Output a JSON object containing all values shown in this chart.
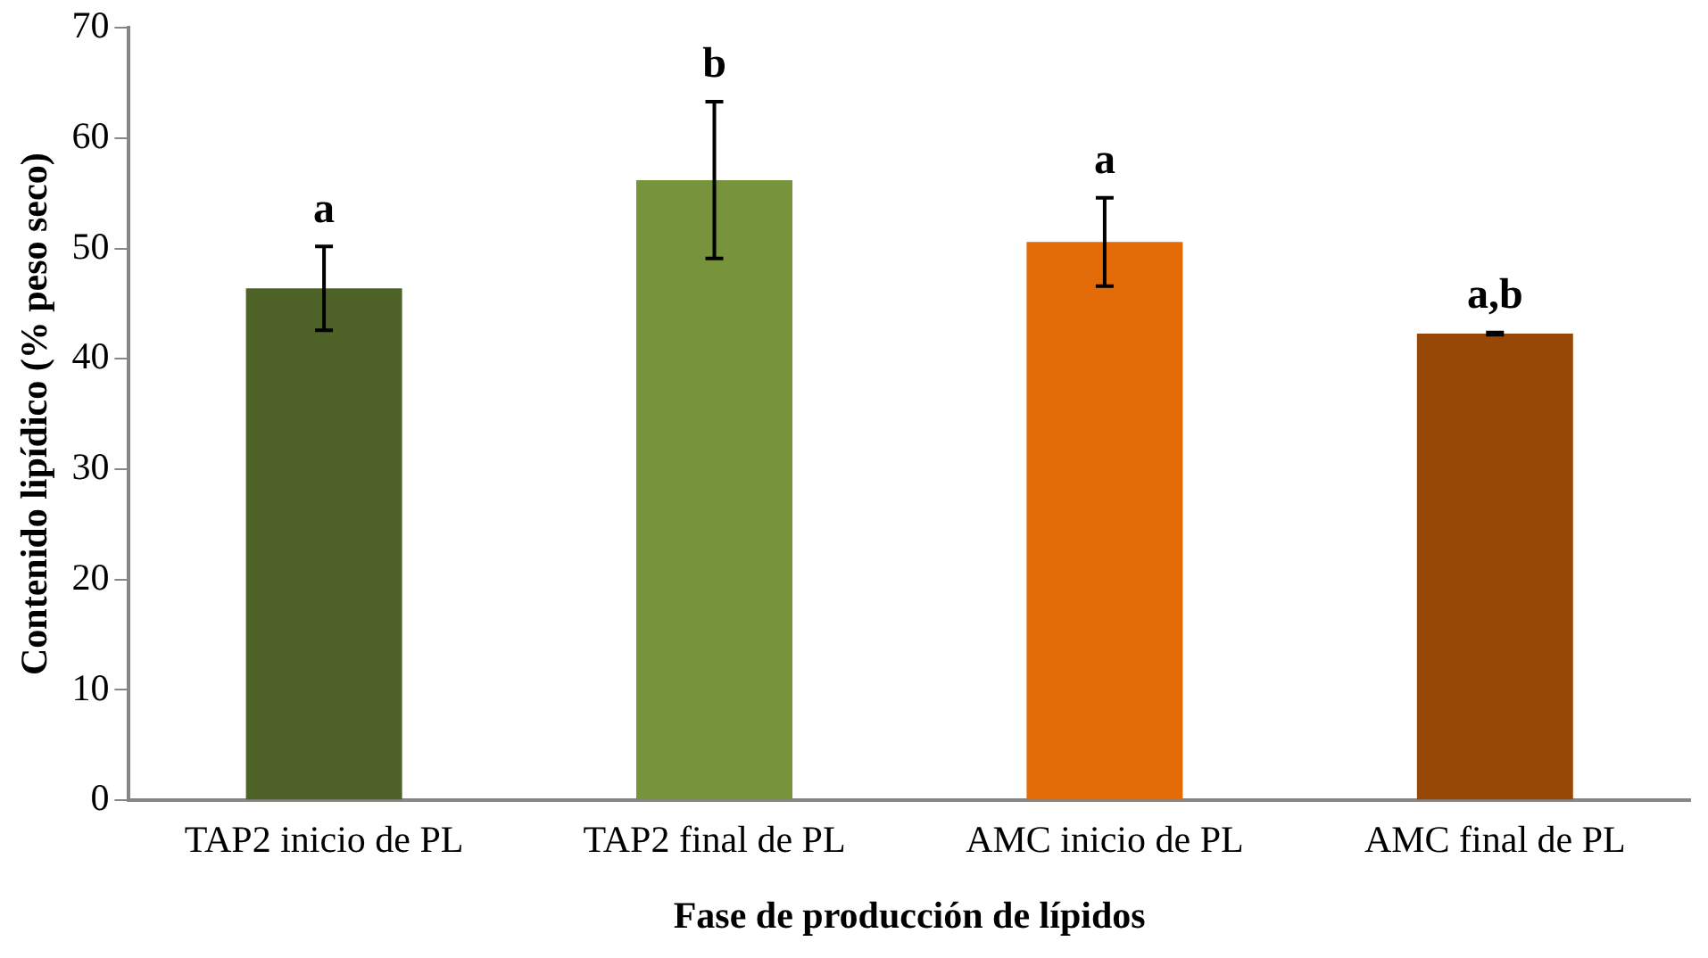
{
  "chart_data": {
    "type": "bar",
    "xlabel": "Fase de producción de lípidos",
    "ylabel": "Contenido lipídico (% peso seco)",
    "categories": [
      "TAP2 inicio de PL",
      "TAP2 final de PL",
      "AMC inicio de PL",
      "AMC final de PL"
    ],
    "values": [
      46.4,
      56.2,
      50.6,
      42.3
    ],
    "colors": [
      "#4f6228",
      "#77933c",
      "#e36c09",
      "#974806"
    ],
    "errors": [
      3.8,
      7.1,
      4.0,
      0.1
    ],
    "ylim": [
      0,
      70
    ],
    "yticks": [
      0,
      10,
      20,
      30,
      40,
      50,
      60,
      70
    ],
    "grid": false,
    "legend": false,
    "annotations": [
      "a",
      "b",
      "a",
      "a,b"
    ]
  }
}
